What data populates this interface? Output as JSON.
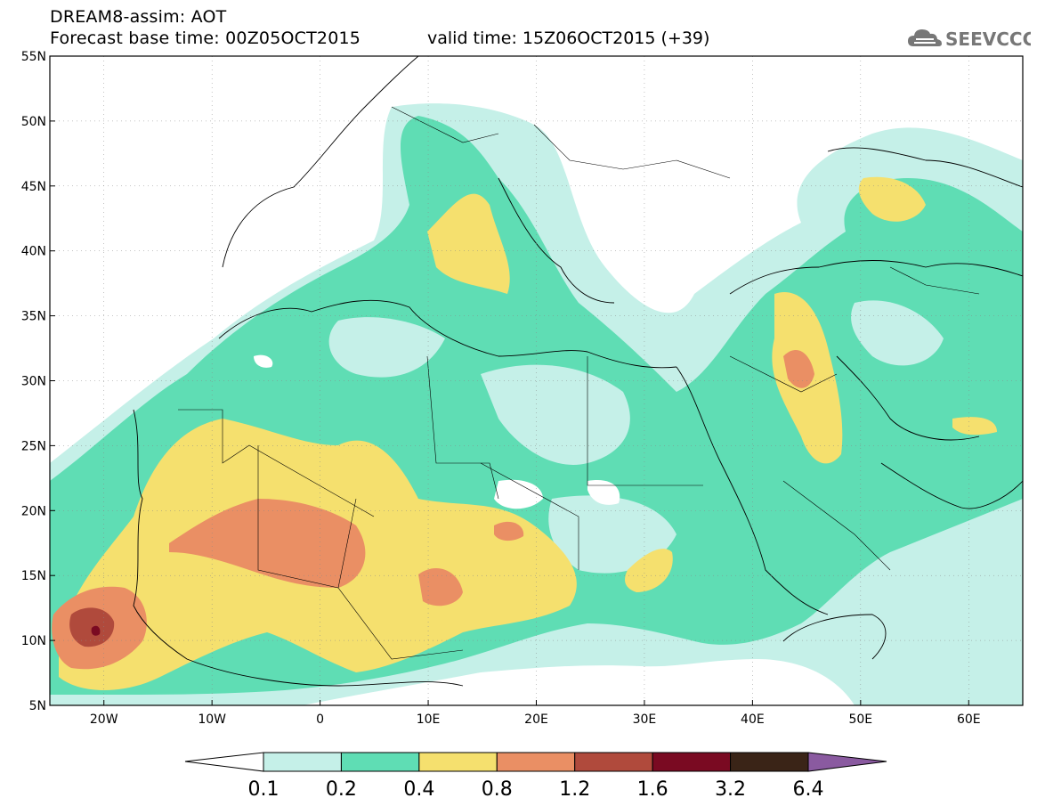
{
  "header": {
    "title": "DREAM8-assim: AOT",
    "base_time_text": "Forecast base time: 00Z05OCT2015",
    "valid_time_text": "valid time: 15Z06OCT2015 (+39)"
  },
  "logo": {
    "text": "SEEVCCC",
    "icon": "cloud-icon"
  },
  "map": {
    "background": "#ffffff",
    "lat_ticks": [
      "55N",
      "50N",
      "45N",
      "40N",
      "35N",
      "30N",
      "25N",
      "20N",
      "15N",
      "10N",
      "5N"
    ],
    "lon_ticks": [
      "20W",
      "10W",
      "0",
      "10E",
      "20E",
      "30E",
      "40E",
      "50E",
      "60E"
    ],
    "lat_range": [
      5,
      55
    ],
    "lon_range": [
      -25,
      65
    ]
  },
  "colorbar": {
    "levels": [
      "0.1",
      "0.2",
      "0.4",
      "0.8",
      "1.2",
      "1.6",
      "3.2",
      "6.4"
    ],
    "colors": [
      "#c5f0e8",
      "#5fddb4",
      "#f5e06e",
      "#ea8f64",
      "#b04a3c",
      "#7a0a22",
      "#3a2417",
      "#8a5aa0"
    ]
  }
}
